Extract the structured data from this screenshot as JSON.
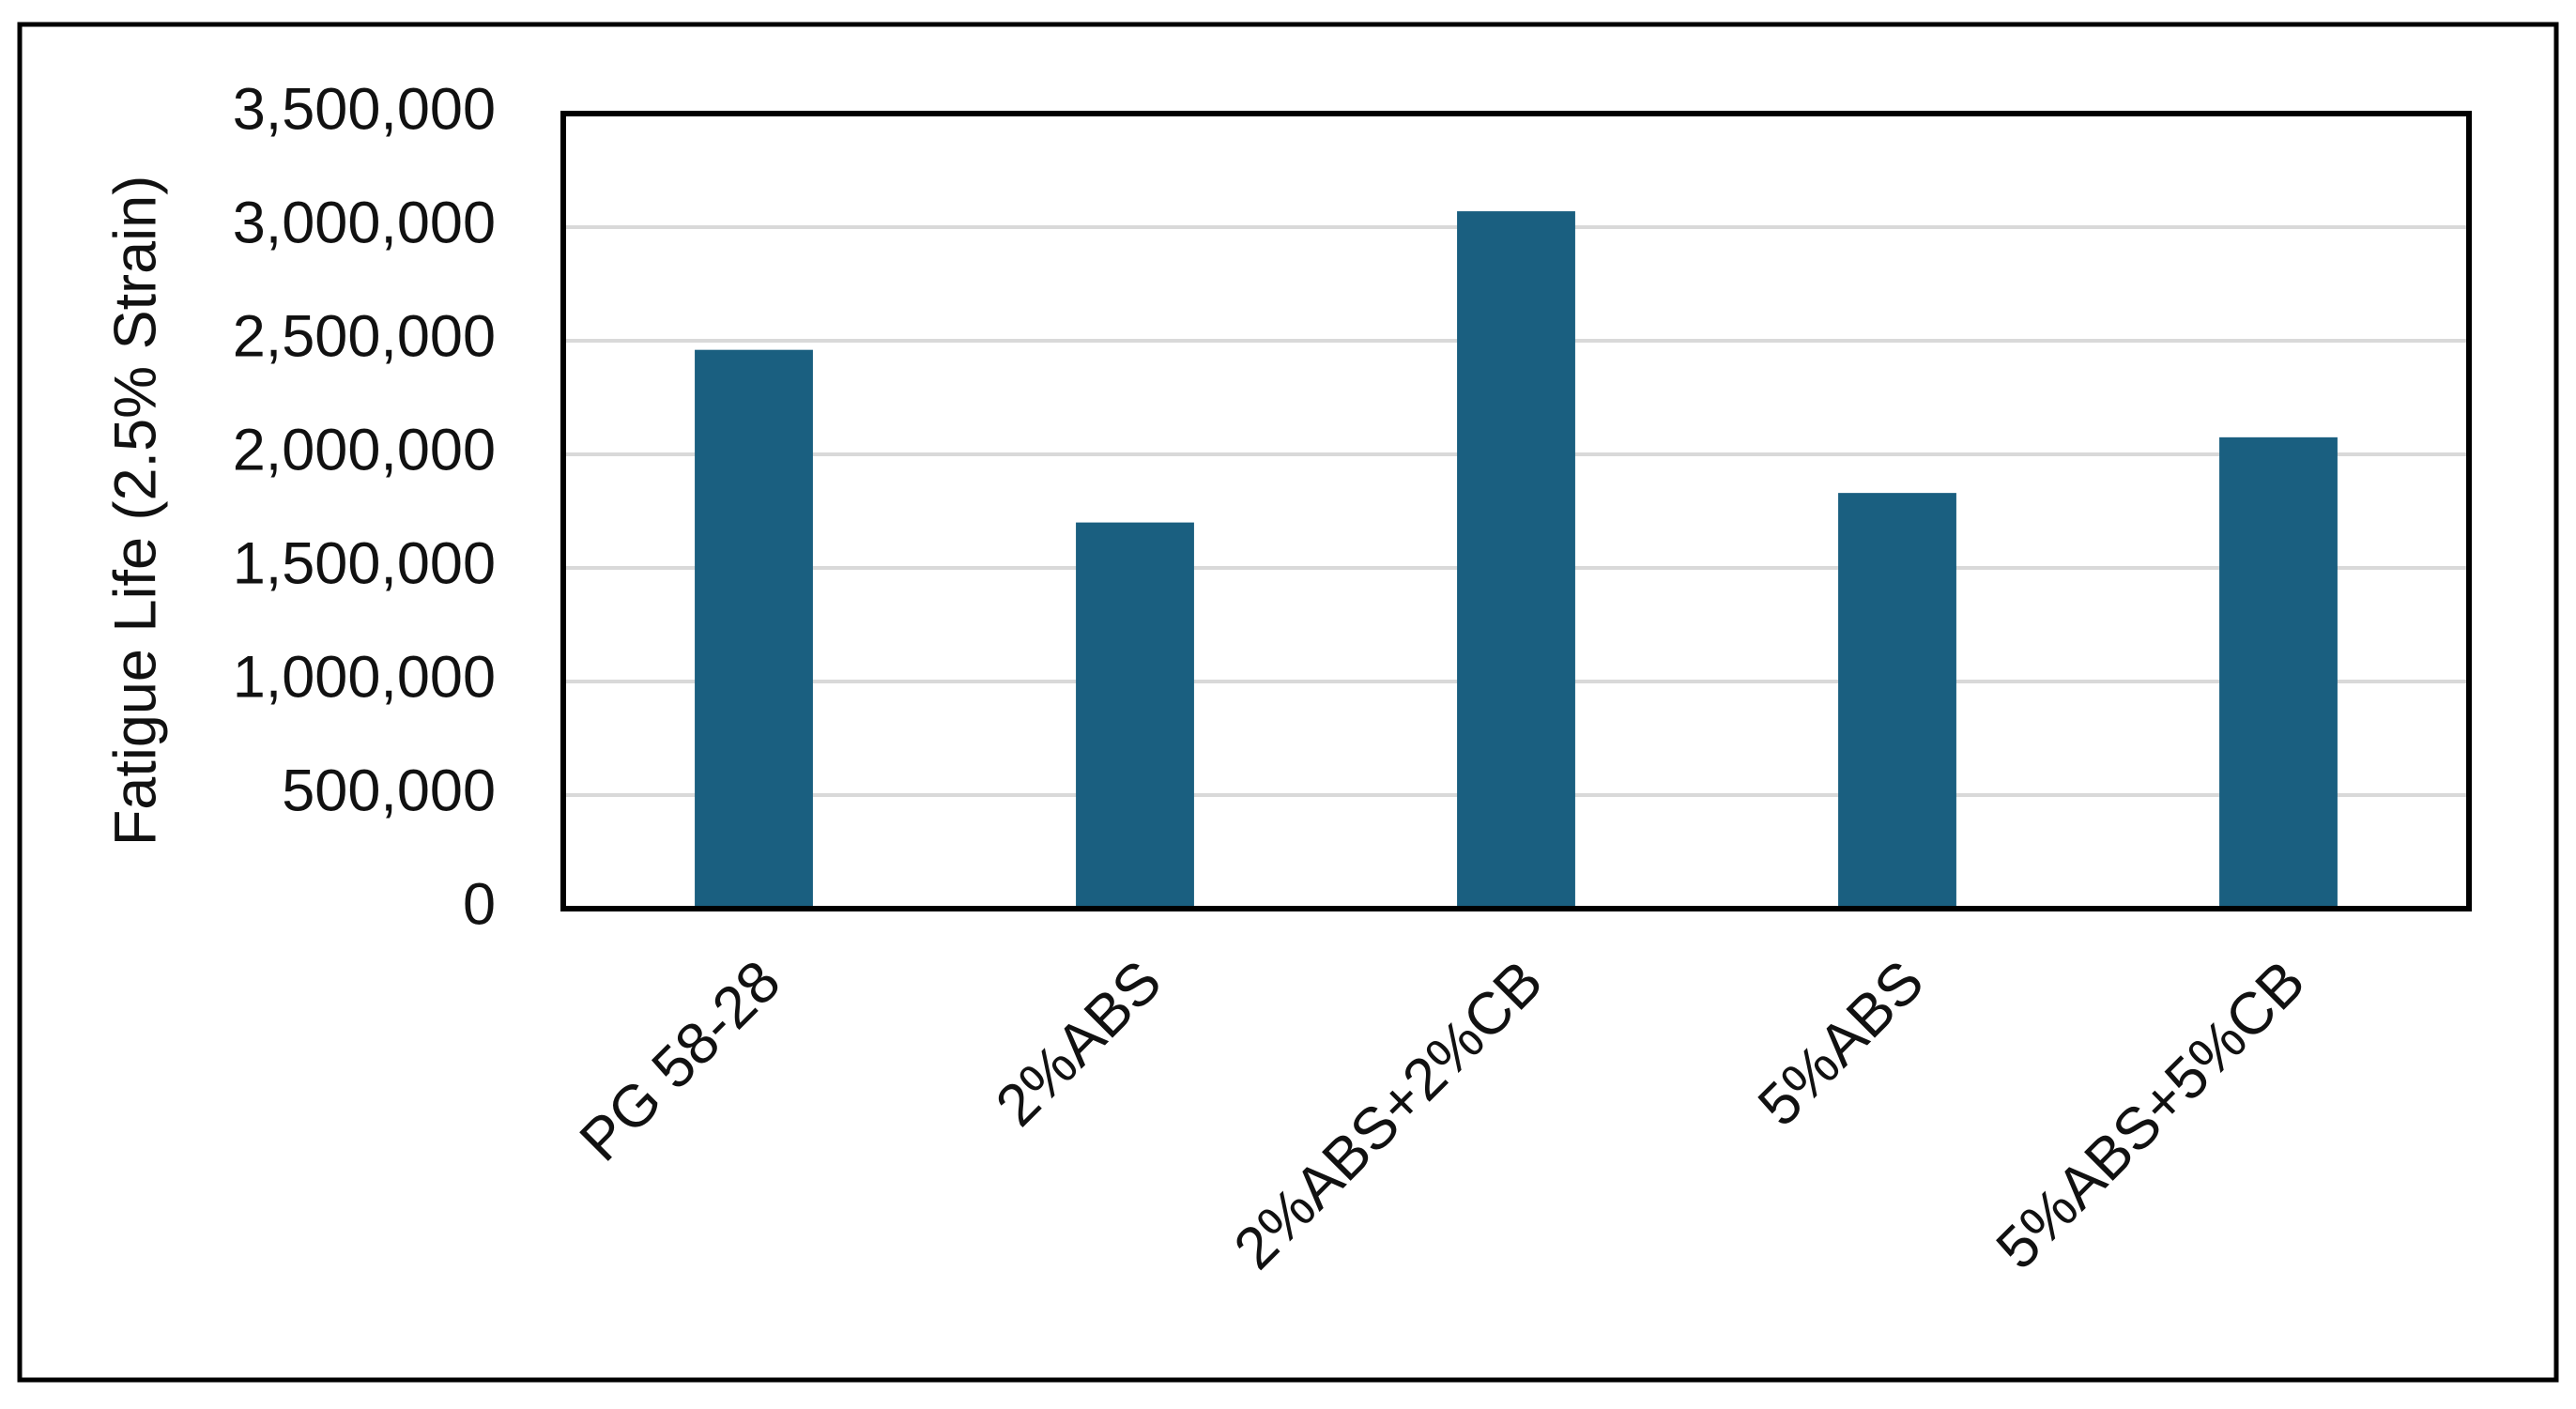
{
  "chart_data": {
    "type": "bar",
    "y_label": "Fatigue Life (2.5% Strain)",
    "categories": [
      "PG 58-28",
      "2%ABS",
      "2%ABS+2%CB",
      "5%ABS",
      "5%ABS+5%CB"
    ],
    "values": [
      2460000,
      1700000,
      3070000,
      1830000,
      2075000
    ],
    "color": "#1a5f80",
    "ylim": [
      0,
      3500000
    ],
    "yticks": [
      0,
      {
        "value": 500000,
        "label": "500,000"
      },
      {
        "value": 1000000,
        "label": "1,000,000"
      },
      {
        "value": 1500000,
        "label": "1,500,000"
      },
      {
        "value": 2000000,
        "label": "2,000,000"
      },
      {
        "value": 2500000,
        "label": "2,500,000"
      },
      {
        "value": 3000000,
        "label": "3,000,000"
      },
      {
        "value": 3500000,
        "label": "3,500,000"
      }
    ],
    "grid": true
  }
}
